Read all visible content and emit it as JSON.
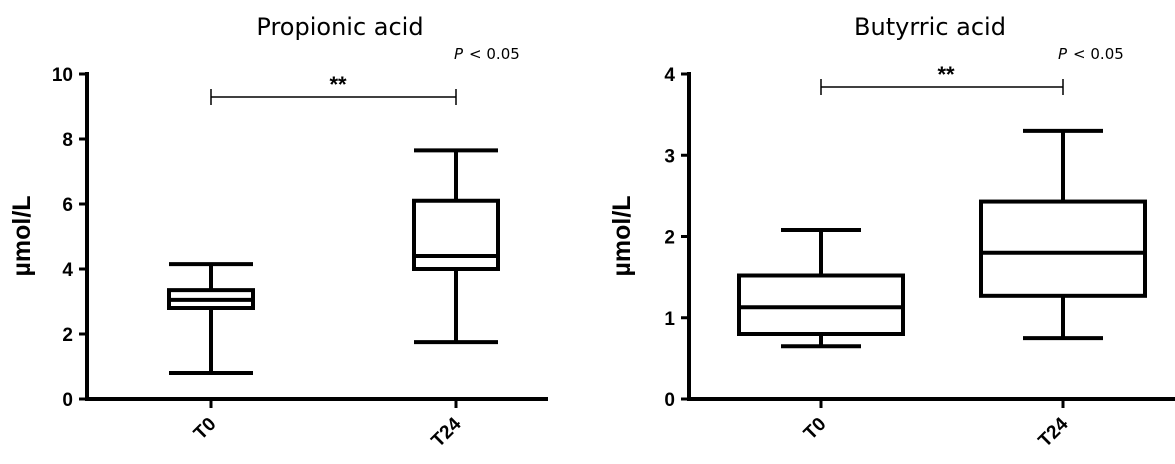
{
  "chart_data": [
    {
      "type": "box",
      "title": "Propionic acid",
      "ylabel": "µmol/L",
      "ylim": [
        0,
        10
      ],
      "yticks": [
        "0",
        "2",
        "4",
        "6",
        "8",
        "10"
      ],
      "categories": [
        "T0",
        "T24"
      ],
      "boxes": [
        {
          "category": "T0",
          "min": 0.8,
          "q1": 2.8,
          "median": 3.05,
          "q3": 3.35,
          "max": 4.15
        },
        {
          "category": "T24",
          "min": 1.75,
          "q1": 4.0,
          "median": 4.4,
          "q3": 6.1,
          "max": 7.65
        }
      ],
      "significance": {
        "stars": "**",
        "p_label": "P",
        "p_text": "< 0.05"
      }
    },
    {
      "type": "box",
      "title": "Butyrric acid",
      "ylabel": "µmol/L",
      "ylim": [
        0,
        4
      ],
      "yticks": [
        "0",
        "1",
        "2",
        "3",
        "4"
      ],
      "categories": [
        "T0",
        "T24"
      ],
      "boxes": [
        {
          "category": "T0",
          "min": 0.65,
          "q1": 0.8,
          "median": 1.13,
          "q3": 1.52,
          "max": 2.08
        },
        {
          "category": "T24",
          "min": 0.75,
          "q1": 1.27,
          "median": 1.8,
          "q3": 2.43,
          "max": 3.3
        }
      ],
      "significance": {
        "stars": "**",
        "p_label": "P",
        "p_text": "< 0.05"
      }
    }
  ]
}
